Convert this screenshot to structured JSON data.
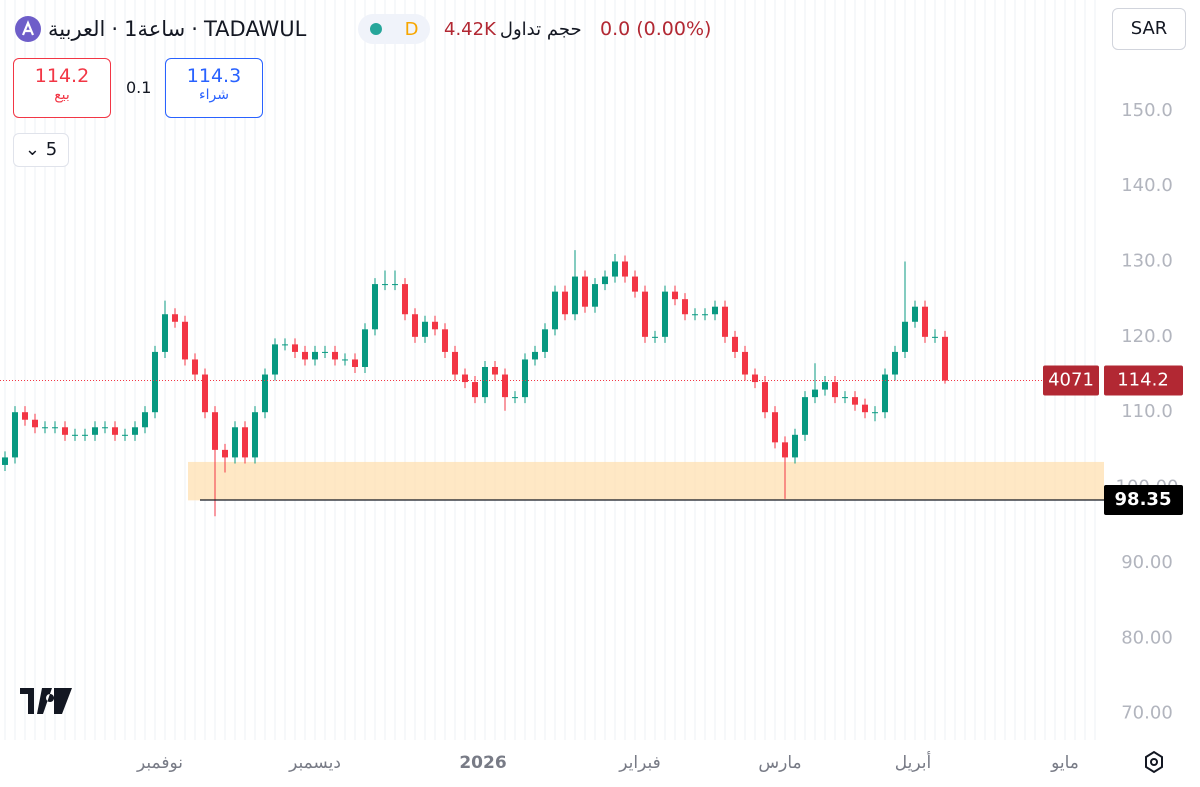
{
  "header": {
    "name": "العربية",
    "interval": "1ساعة",
    "symbol": "TADAWUL",
    "badge": "D",
    "volume_label": "حجم تداول",
    "volume": "4.42K",
    "change": "0.0 (0.00%)",
    "currency": "SAR",
    "sell_price": "114.2",
    "sell_label": "بيع",
    "spread": "0.1",
    "buy_price": "114.3",
    "buy_label": "شراء",
    "lot": "5",
    "countdown": "4071"
  },
  "chart_data": {
    "type": "candlestick",
    "up_color": "#089981",
    "down_color": "#f23645",
    "xlim": [
      -0.5,
      109.5
    ],
    "ylim": [
      66.5,
      164.7
    ],
    "xticks": [
      {
        "value": 15.5,
        "label": "نوفمبر"
      },
      {
        "value": 31,
        "label": "ديسمبر"
      },
      {
        "value": 47.8,
        "label": "2026"
      },
      {
        "value": 63.5,
        "label": "فبراير"
      },
      {
        "value": 77.5,
        "label": "مارس"
      },
      {
        "value": 90.8,
        "label": "أبريل"
      },
      {
        "value": 106,
        "label": "مايو"
      }
    ],
    "yticks": [
      {
        "value": 70,
        "label": "70.00"
      },
      {
        "value": 80,
        "label": "80.00"
      },
      {
        "value": 90,
        "label": "90.00"
      },
      {
        "value": 100,
        "label": "100.00"
      },
      {
        "value": 110,
        "label": "110.0"
      },
      {
        "value": 120,
        "label": "120.0"
      },
      {
        "value": 130,
        "label": "130.0"
      },
      {
        "value": 140,
        "label": "140.0"
      },
      {
        "value": 150,
        "label": "150.0"
      }
    ],
    "last_price": 114.2,
    "level": 98.35,
    "zone": [
      98.3,
      103.4
    ],
    "ohlc": [
      [
        103,
        104.8,
        102.2,
        104
      ],
      [
        104,
        110.8,
        103.2,
        110
      ],
      [
        110,
        110.8,
        108.2,
        109
      ],
      [
        109,
        109.8,
        107.2,
        108
      ],
      [
        108,
        108.8,
        107.2,
        108
      ],
      [
        108,
        108.8,
        107.2,
        108
      ],
      [
        108,
        108.8,
        106.2,
        107
      ],
      [
        107,
        107.8,
        106.2,
        107
      ],
      [
        107,
        107.8,
        106.2,
        107
      ],
      [
        107,
        108.8,
        106.2,
        108
      ],
      [
        108,
        108.8,
        107.2,
        108
      ],
      [
        108,
        108.8,
        106.2,
        107
      ],
      [
        107,
        107.8,
        106.2,
        107
      ],
      [
        107,
        108.8,
        106.2,
        108
      ],
      [
        108,
        110.8,
        107.2,
        110
      ],
      [
        110,
        118.8,
        109.2,
        118
      ],
      [
        118,
        124.8,
        117.2,
        123
      ],
      [
        123,
        123.8,
        121.2,
        122
      ],
      [
        122,
        122.8,
        116.2,
        117
      ],
      [
        117,
        117.8,
        114.2,
        115
      ],
      [
        115,
        115.8,
        109.2,
        110
      ],
      [
        110,
        110.8,
        96.2,
        105
      ],
      [
        105,
        105.8,
        102,
        104
      ],
      [
        104,
        108.8,
        103.2,
        108
      ],
      [
        108,
        108.8,
        103.2,
        104
      ],
      [
        104,
        110.8,
        103.2,
        110
      ],
      [
        110,
        115.8,
        109.2,
        115
      ],
      [
        115,
        119.8,
        114.2,
        119
      ],
      [
        119,
        119.8,
        118.2,
        119
      ],
      [
        119,
        119.8,
        117.2,
        118
      ],
      [
        118,
        118.8,
        116.2,
        117
      ],
      [
        117,
        118.8,
        116.2,
        118
      ],
      [
        118,
        118.8,
        117.2,
        118
      ],
      [
        118,
        118.8,
        116.2,
        117
      ],
      [
        117,
        117.8,
        116.2,
        117
      ],
      [
        117,
        117.8,
        115.2,
        116
      ],
      [
        116,
        121.8,
        115.2,
        121
      ],
      [
        121,
        127.8,
        120.2,
        127
      ],
      [
        127,
        128.8,
        126.2,
        127
      ],
      [
        127,
        128.8,
        126.2,
        127
      ],
      [
        127,
        127.8,
        122.2,
        123
      ],
      [
        123,
        123.8,
        119.2,
        120
      ],
      [
        120,
        122.8,
        119.2,
        122
      ],
      [
        122,
        122.8,
        120.2,
        121
      ],
      [
        121,
        121.8,
        117.2,
        118
      ],
      [
        118,
        118.8,
        114.2,
        115
      ],
      [
        115,
        115.8,
        113.2,
        114
      ],
      [
        114,
        114.8,
        111.2,
        112
      ],
      [
        112,
        116.8,
        111.2,
        116
      ],
      [
        116,
        116.8,
        114.2,
        115
      ],
      [
        115,
        115.8,
        110.2,
        112
      ],
      [
        112,
        112.8,
        111.2,
        112
      ],
      [
        112,
        117.8,
        111.2,
        117
      ],
      [
        117,
        118.8,
        116.2,
        118
      ],
      [
        118,
        121.8,
        117.2,
        121
      ],
      [
        121,
        126.8,
        120.2,
        126
      ],
      [
        126,
        126.8,
        122.2,
        123
      ],
      [
        123,
        131.5,
        122.2,
        128
      ],
      [
        128,
        128.8,
        123.2,
        124
      ],
      [
        124,
        127.8,
        123.2,
        127
      ],
      [
        127,
        128.8,
        126.2,
        128
      ],
      [
        128,
        131,
        127.2,
        130
      ],
      [
        130,
        130.8,
        127.2,
        128
      ],
      [
        128,
        128.8,
        125.2,
        126
      ],
      [
        126,
        126.8,
        119.2,
        120
      ],
      [
        120,
        120.8,
        119.2,
        120
      ],
      [
        120,
        126.8,
        119.2,
        126
      ],
      [
        126,
        126.8,
        124.2,
        125
      ],
      [
        125,
        125.8,
        122.2,
        123
      ],
      [
        123,
        123.8,
        122.2,
        123
      ],
      [
        123,
        123.8,
        122.2,
        123
      ],
      [
        123,
        124.8,
        122.2,
        124
      ],
      [
        124,
        124.8,
        119.2,
        120
      ],
      [
        120,
        120.8,
        117.2,
        118
      ],
      [
        118,
        118.8,
        114.2,
        115
      ],
      [
        115,
        115.8,
        113.2,
        114
      ],
      [
        114,
        114.8,
        109.2,
        110
      ],
      [
        110,
        110.8,
        105.2,
        106
      ],
      [
        106,
        106.8,
        98.5,
        104
      ],
      [
        104,
        107.8,
        103.2,
        107
      ],
      [
        107,
        112.8,
        106.2,
        112
      ],
      [
        112,
        116.5,
        111.2,
        113
      ],
      [
        113,
        114.8,
        112.2,
        114
      ],
      [
        114,
        114.8,
        111.2,
        112
      ],
      [
        112,
        112.8,
        111.2,
        112
      ],
      [
        112,
        112.8,
        110.2,
        111
      ],
      [
        111,
        111.8,
        109.2,
        110
      ],
      [
        110,
        110.8,
        108.8,
        110
      ],
      [
        110,
        115.8,
        109.2,
        115
      ],
      [
        115,
        118.8,
        114.2,
        118
      ],
      [
        118,
        130,
        117.2,
        122
      ],
      [
        122,
        124.8,
        121.2,
        124
      ],
      [
        124,
        124.8,
        119.2,
        120
      ],
      [
        120,
        121,
        119.2,
        120
      ],
      [
        120,
        120.8,
        113.8,
        114.2
      ]
    ]
  }
}
